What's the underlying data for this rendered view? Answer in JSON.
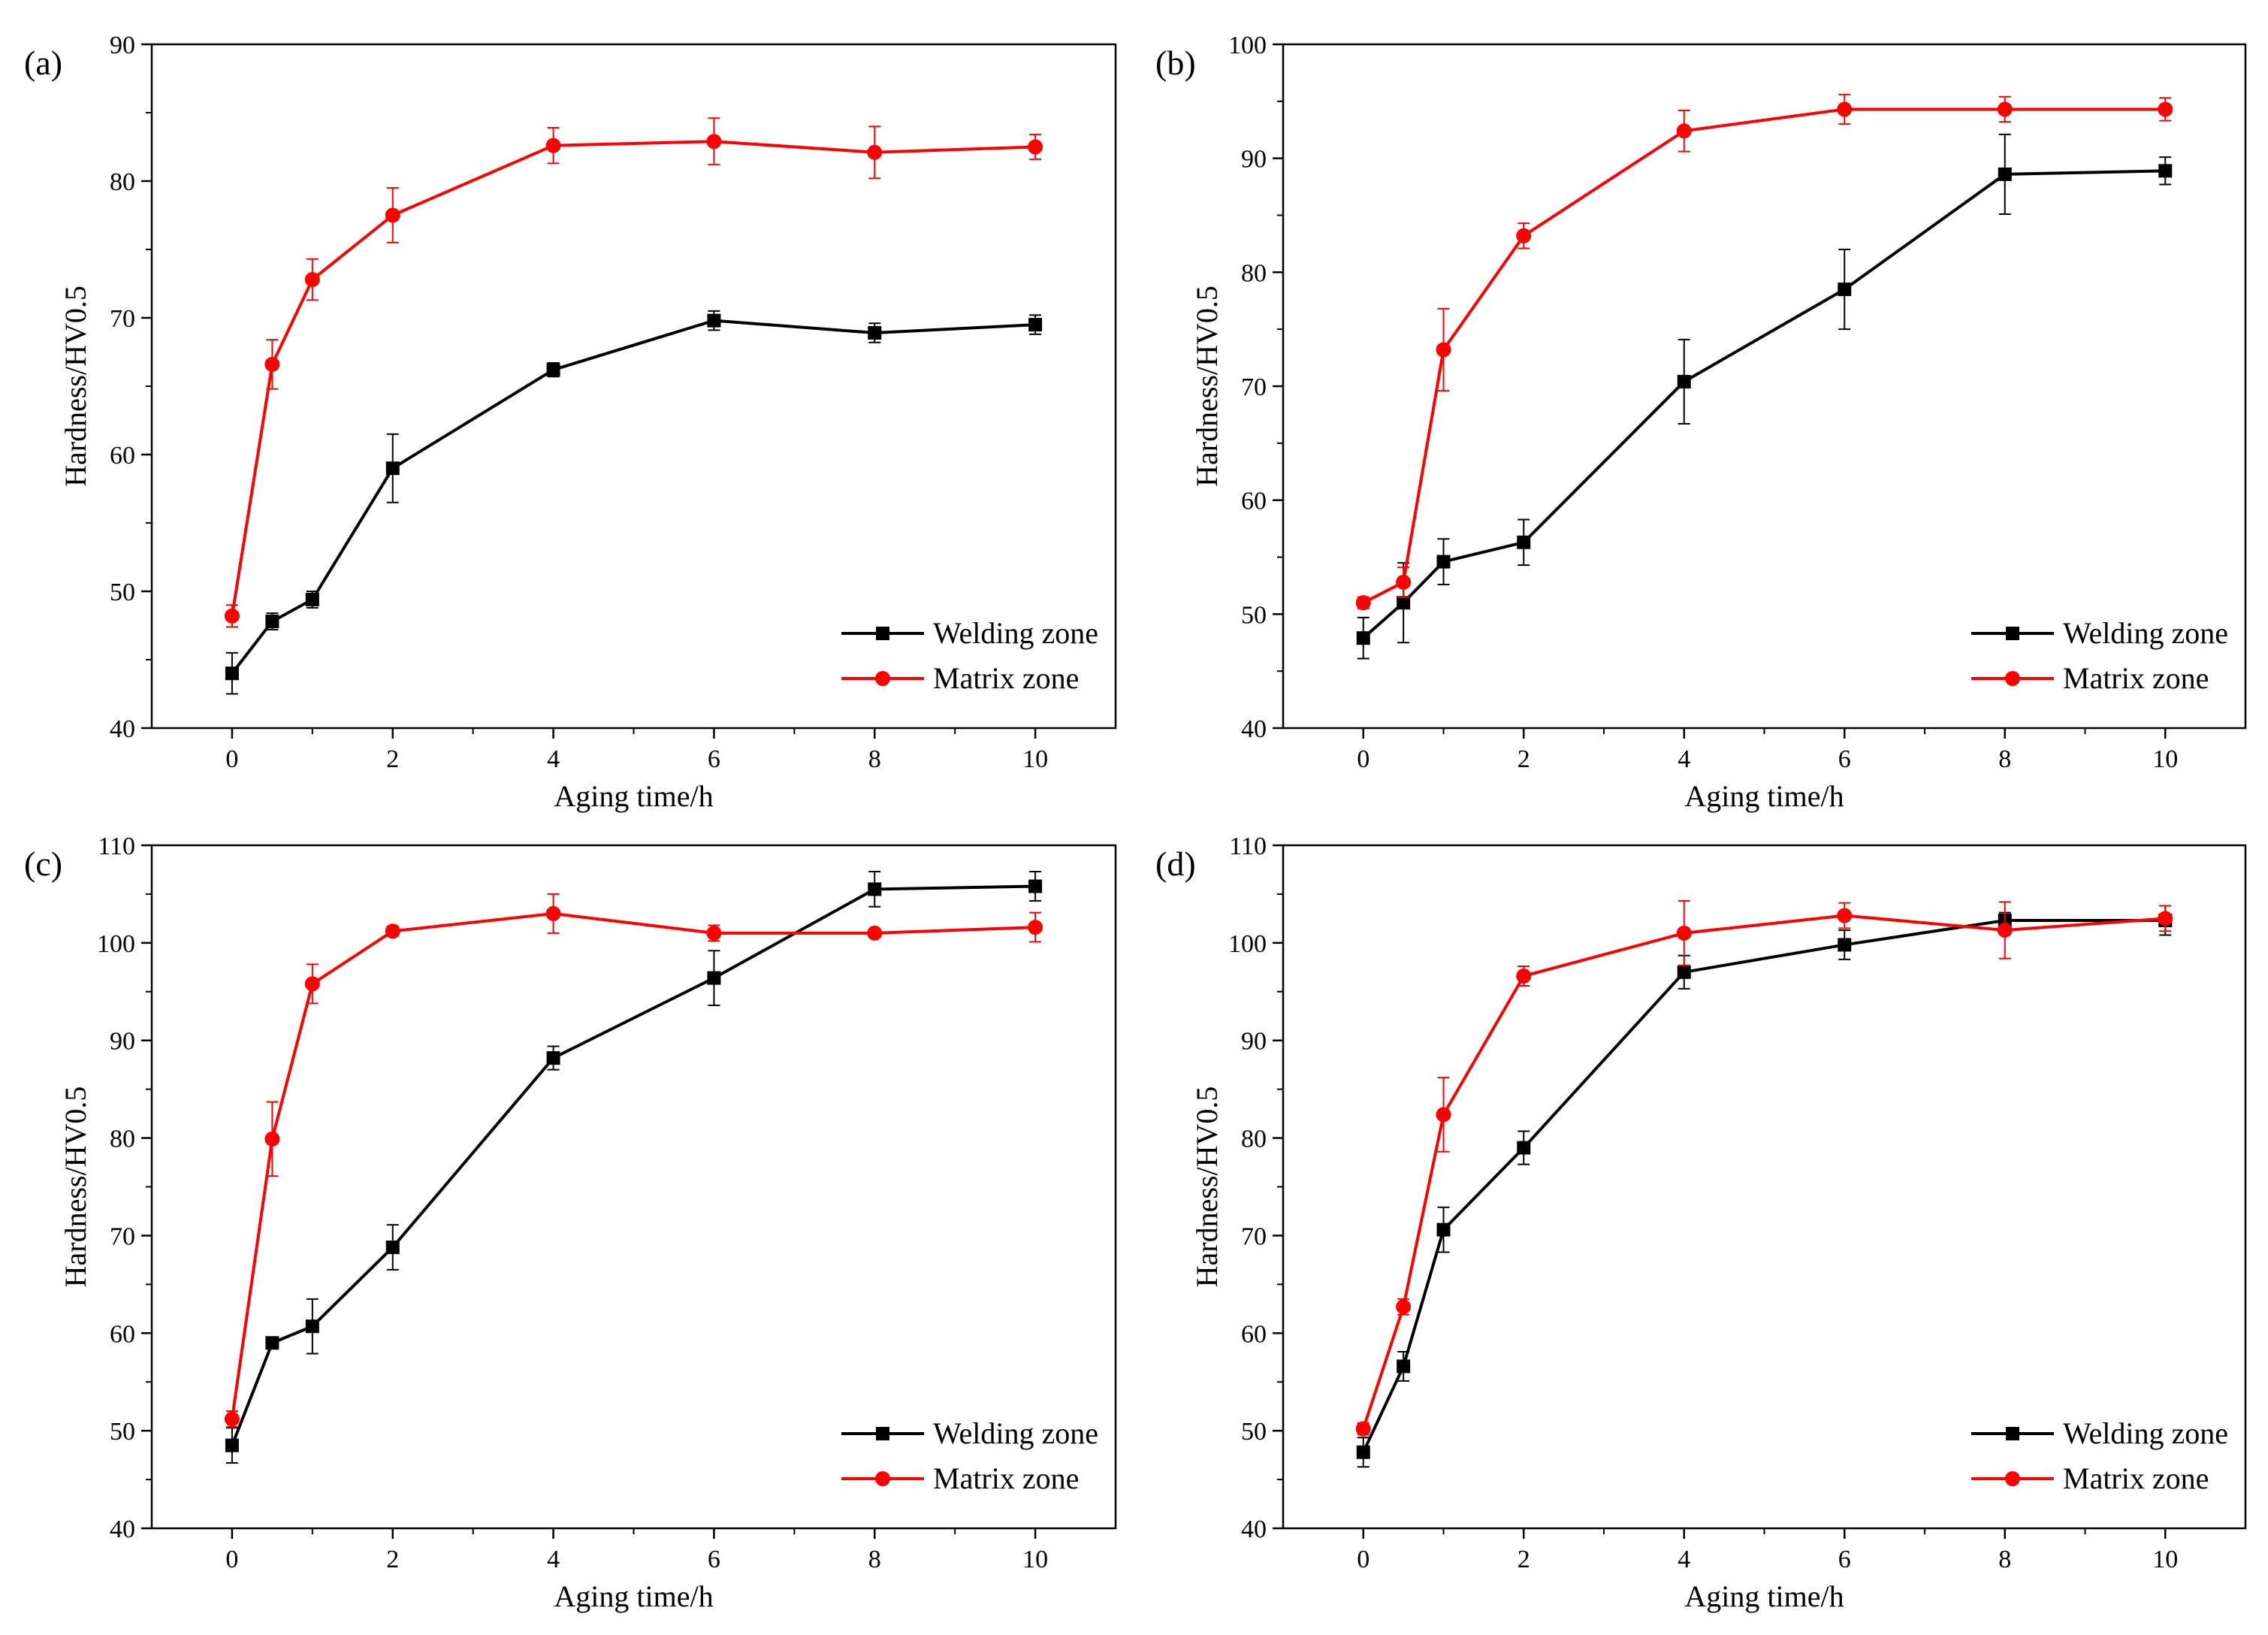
{
  "chart_data": [
    {
      "panel": "(a)",
      "type": "line",
      "xlabel": "Aging time/h",
      "ylabel": "Hardness/HV0.5",
      "xlim": [
        -1,
        11
      ],
      "ylim": [
        40,
        90
      ],
      "xticks": [
        0,
        2,
        4,
        6,
        8,
        10
      ],
      "yticks": [
        40,
        50,
        60,
        70,
        80,
        90
      ],
      "legend_position": "lower-right",
      "x": [
        0,
        0.5,
        1,
        2,
        4,
        6,
        8,
        10
      ],
      "series": [
        {
          "name": "Welding zone",
          "color": "#000000",
          "marker": "square",
          "values": [
            44.0,
            47.8,
            49.4,
            59.0,
            66.2,
            69.8,
            68.9,
            69.5
          ],
          "errors": [
            1.5,
            0.6,
            0.6,
            2.5,
            0.5,
            0.7,
            0.7,
            0.7
          ]
        },
        {
          "name": "Matrix zone",
          "color": "#ff0000",
          "marker": "circle",
          "values": [
            48.2,
            66.6,
            72.8,
            77.5,
            82.6,
            82.9,
            82.1,
            82.5
          ],
          "errors": [
            0.8,
            1.8,
            1.5,
            2.0,
            1.3,
            1.7,
            1.9,
            0.9
          ]
        }
      ]
    },
    {
      "panel": "(b)",
      "type": "line",
      "xlabel": "Aging time/h",
      "ylabel": "Hardness/HV0.5",
      "xlim": [
        -1,
        11
      ],
      "ylim": [
        40,
        100
      ],
      "xticks": [
        0,
        2,
        4,
        6,
        8,
        10
      ],
      "yticks": [
        40,
        50,
        60,
        70,
        80,
        90,
        100
      ],
      "legend_position": "lower-right",
      "x": [
        0,
        0.5,
        1,
        2,
        4,
        6,
        8,
        10
      ],
      "series": [
        {
          "name": "Welding zone",
          "color": "#000000",
          "marker": "square",
          "values": [
            47.9,
            51.0,
            54.6,
            56.3,
            70.4,
            78.5,
            88.6,
            88.9
          ],
          "errors": [
            1.8,
            3.5,
            2.0,
            2.0,
            3.7,
            3.5,
            3.5,
            1.2
          ]
        },
        {
          "name": "Matrix zone",
          "color": "#ff0000",
          "marker": "circle",
          "values": [
            51.0,
            52.8,
            73.2,
            83.2,
            92.4,
            94.3,
            94.3,
            94.3
          ],
          "errors": [
            0.5,
            1.3,
            3.6,
            1.1,
            1.8,
            1.3,
            1.1,
            1.0
          ]
        }
      ]
    },
    {
      "panel": "(c)",
      "type": "line",
      "xlabel": "Aging time/h",
      "ylabel": "Hardness/HV0.5",
      "xlim": [
        -1,
        11
      ],
      "ylim": [
        40,
        110
      ],
      "xticks": [
        0,
        2,
        4,
        6,
        8,
        10
      ],
      "yticks": [
        40,
        50,
        60,
        70,
        80,
        90,
        100,
        110
      ],
      "legend_position": "lower-right",
      "x": [
        0,
        0.5,
        1,
        2,
        4,
        6,
        8,
        10
      ],
      "series": [
        {
          "name": "Welding zone",
          "color": "#000000",
          "marker": "square",
          "values": [
            48.5,
            59.0,
            60.7,
            68.8,
            88.2,
            96.4,
            105.5,
            105.8
          ],
          "errors": [
            1.8,
            0.5,
            2.8,
            2.3,
            1.2,
            2.8,
            1.8,
            1.5
          ]
        },
        {
          "name": "Matrix zone",
          "color": "#ff0000",
          "marker": "circle",
          "values": [
            51.2,
            79.9,
            95.8,
            101.2,
            103.0,
            101.0,
            101.0,
            101.6
          ],
          "errors": [
            0.8,
            3.8,
            2.0,
            0.5,
            2.0,
            0.8,
            0.4,
            1.5
          ]
        }
      ]
    },
    {
      "panel": "(d)",
      "type": "line",
      "xlabel": "Aging time/h",
      "ylabel": "Hardness/HV0.5",
      "xlim": [
        -1,
        11
      ],
      "ylim": [
        40,
        110
      ],
      "xticks": [
        0,
        2,
        4,
        6,
        8,
        10
      ],
      "yticks": [
        40,
        50,
        60,
        70,
        80,
        90,
        100,
        110
      ],
      "legend_position": "lower-right",
      "x": [
        0,
        0.5,
        1,
        2,
        4,
        6,
        8,
        10
      ],
      "series": [
        {
          "name": "Welding zone",
          "color": "#000000",
          "marker": "square",
          "values": [
            47.8,
            56.6,
            70.6,
            79.0,
            97.0,
            99.8,
            102.3,
            102.3
          ],
          "errors": [
            1.5,
            1.5,
            2.3,
            1.7,
            1.7,
            1.5,
            0.8,
            1.5
          ]
        },
        {
          "name": "Matrix zone",
          "color": "#ff0000",
          "marker": "circle",
          "values": [
            50.2,
            62.7,
            82.4,
            96.6,
            101.0,
            102.8,
            101.3,
            102.5
          ],
          "errors": [
            0.6,
            0.8,
            3.8,
            1.0,
            3.3,
            1.3,
            2.9,
            1.3
          ]
        }
      ]
    }
  ]
}
